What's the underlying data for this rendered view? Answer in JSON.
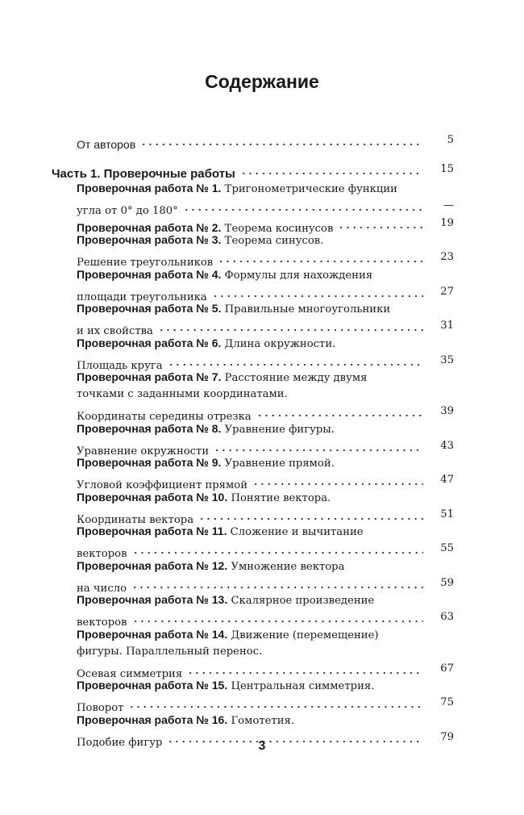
{
  "title": "Содержание",
  "intro": {
    "label": "От авторов",
    "page": "5"
  },
  "part": {
    "label": "Часть 1. Проверочные работы",
    "page": "15"
  },
  "works": [
    {
      "label": "Проверочная работа № 1.",
      "lines": [
        "Тригонометрические функции",
        "угла от 0° до 180°"
      ],
      "page": "—"
    },
    {
      "label": "Проверочная работа № 2.",
      "lines": [
        "Теорема косинусов"
      ],
      "page": "19"
    },
    {
      "label": "Проверочная работа № 3.",
      "lines": [
        "Теорема синусов.",
        "Решение треугольников"
      ],
      "page": "23"
    },
    {
      "label": "Проверочная работа № 4.",
      "lines": [
        "Формулы для нахождения",
        "площади треугольника"
      ],
      "page": "27"
    },
    {
      "label": "Проверочная работа № 5.",
      "lines": [
        "Правильные многоугольники",
        "и их свойства"
      ],
      "page": "31"
    },
    {
      "label": "Проверочная работа № 6.",
      "lines": [
        "Длина окружности.",
        "Площадь круга"
      ],
      "page": "35"
    },
    {
      "label": "Проверочная работа № 7.",
      "lines": [
        "Расстояние между двумя",
        "точками с заданными координатами.",
        "Координаты середины отрезка"
      ],
      "page": "39"
    },
    {
      "label": "Проверочная работа № 8.",
      "lines": [
        "Уравнение фигуры.",
        "Уравнение окружности"
      ],
      "page": "43"
    },
    {
      "label": "Проверочная работа № 9.",
      "lines": [
        "Уравнение прямой.",
        "Угловой коэффициент прямой"
      ],
      "page": "47"
    },
    {
      "label": "Проверочная работа № 10.",
      "lines": [
        "Понятие вектора.",
        "Координаты вектора"
      ],
      "page": "51"
    },
    {
      "label": "Проверочная работа № 11.",
      "lines": [
        "Сложение и вычитание",
        "векторов"
      ],
      "page": "55"
    },
    {
      "label": "Проверочная работа № 12.",
      "lines": [
        "Умножение вектора",
        "на число"
      ],
      "page": "59"
    },
    {
      "label": "Проверочная работа № 13.",
      "lines": [
        "Скалярное произведение",
        "векторов"
      ],
      "page": "63"
    },
    {
      "label": "Проверочная работа № 14.",
      "lines": [
        "Движение (перемещение)",
        "фигуры. Параллельный перенос.",
        "Осевая симметрия"
      ],
      "page": "67"
    },
    {
      "label": "Проверочная работа № 15.",
      "lines": [
        "Центральная симметрия.",
        "Поворот"
      ],
      "page": "75"
    },
    {
      "label": "Проверочная работа № 16.",
      "lines": [
        "Гомотетия.",
        "Подобие фигур"
      ],
      "page": "79"
    }
  ],
  "page_number": "3"
}
